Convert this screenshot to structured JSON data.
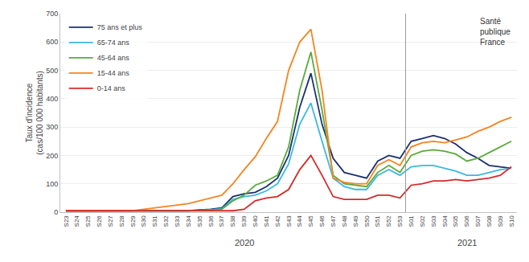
{
  "chart_data": {
    "type": "line",
    "ylabel": "Taux d'incidence\n(cas/100 000 habitants)",
    "categories": [
      "S23",
      "S24",
      "S25",
      "S26",
      "S27",
      "S28",
      "S29",
      "S30",
      "S31",
      "S32",
      "S33",
      "S34",
      "S35",
      "S36",
      "S37",
      "S38",
      "S39",
      "S40",
      "S41",
      "S42",
      "S43",
      "S44",
      "S45",
      "S46",
      "S47",
      "S48",
      "S49",
      "S50",
      "S51",
      "S52",
      "S53",
      "S01",
      "S02",
      "S03",
      "S04",
      "S05",
      "S06",
      "S07",
      "S08",
      "S09",
      "S10"
    ],
    "series": [
      {
        "name": "75 ans et plus",
        "color": "#1a3070",
        "values": [
          5,
          5,
          5,
          5,
          5,
          5,
          5,
          5,
          5,
          5,
          5,
          5,
          8,
          10,
          15,
          55,
          65,
          70,
          90,
          120,
          200,
          370,
          490,
          310,
          190,
          140,
          130,
          120,
          180,
          200,
          190,
          250,
          260,
          270,
          260,
          240,
          210,
          190,
          165,
          160,
          155
        ]
      },
      {
        "name": "65-74 ans",
        "color": "#3ab8e0",
        "values": [
          5,
          5,
          5,
          5,
          5,
          5,
          5,
          5,
          5,
          5,
          5,
          5,
          6,
          8,
          12,
          45,
          55,
          60,
          75,
          100,
          170,
          310,
          385,
          250,
          120,
          90,
          80,
          80,
          130,
          150,
          130,
          160,
          165,
          165,
          155,
          145,
          130,
          130,
          140,
          150,
          155
        ]
      },
      {
        "name": "45-64 ans",
        "color": "#5aaa3c",
        "values": [
          5,
          5,
          5,
          5,
          5,
          5,
          5,
          5,
          5,
          5,
          5,
          5,
          6,
          8,
          10,
          40,
          60,
          95,
          110,
          130,
          230,
          430,
          565,
          360,
          130,
          100,
          95,
          90,
          140,
          165,
          140,
          200,
          215,
          220,
          215,
          205,
          180,
          190,
          210,
          230,
          250
        ]
      },
      {
        "name": "15-44 ans",
        "color": "#f5841f",
        "values": [
          5,
          5,
          5,
          5,
          5,
          5,
          5,
          10,
          15,
          20,
          25,
          30,
          40,
          50,
          60,
          100,
          150,
          195,
          260,
          320,
          500,
          600,
          645,
          430,
          120,
          105,
          100,
          100,
          165,
          185,
          165,
          230,
          245,
          250,
          245,
          255,
          265,
          285,
          300,
          320,
          335
        ]
      },
      {
        "name": "0-14 ans",
        "color": "#d42b2b",
        "values": [
          5,
          5,
          5,
          5,
          5,
          5,
          5,
          5,
          5,
          5,
          5,
          5,
          5,
          5,
          5,
          5,
          10,
          40,
          50,
          55,
          80,
          150,
          200,
          130,
          55,
          45,
          45,
          45,
          60,
          60,
          50,
          95,
          100,
          110,
          110,
          115,
          110,
          115,
          120,
          130,
          160
        ]
      }
    ],
    "ylim": [
      0,
      700
    ],
    "yticks": [
      0,
      100,
      200,
      300,
      400,
      500,
      600,
      700
    ],
    "grid": true,
    "legend": "upper left",
    "annotations": [
      {
        "text": "2020",
        "x": "S39"
      },
      {
        "text": "2021",
        "x": "S06"
      },
      {
        "text": "Santé\npublique\nFrance"
      }
    ]
  }
}
